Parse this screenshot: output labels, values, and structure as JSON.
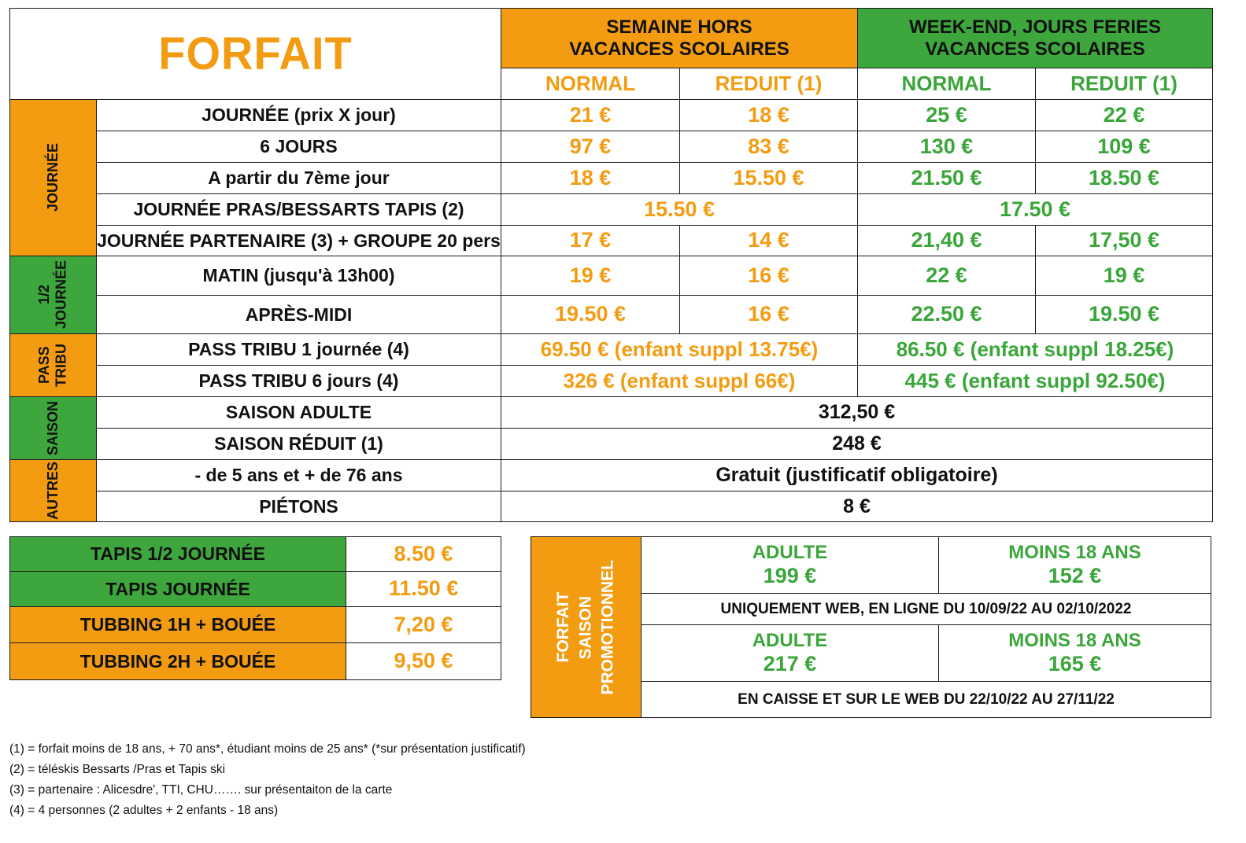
{
  "title": "FORFAIT",
  "group_headers": {
    "semaine": "SEMAINE     HORS\nVACANCES SCOLAIRES",
    "weekend": "WEEK-END, JOURS FERIES\nVACANCES SCOLAIRES"
  },
  "sub_headers": {
    "normal": "NORMAL",
    "reduit": "REDUIT (1)"
  },
  "sections": {
    "journee": "JOURNÉE",
    "demi": "1/2\nJOURNÉE",
    "pass": "PASS\nTRIBU",
    "saison": "SAISON",
    "autres": "AUTRES"
  },
  "rows": {
    "r1": {
      "label": "JOURNÉE (prix X jour)",
      "v1": "21 €",
      "v2": "18 €",
      "v3": "25 €",
      "v4": "22 €"
    },
    "r2": {
      "label": "6 JOURS",
      "v1": "97 €",
      "v2": "83 €",
      "v3": "130 €",
      "v4": "109 €"
    },
    "r3": {
      "label": "A partir du 7ème jour",
      "v1": "18 €",
      "v2": "15.50 €",
      "v3": "21.50 €",
      "v4": "18.50 €"
    },
    "r4": {
      "label": "JOURNÉE PRAS/BESSARTS TAPIS (2)",
      "v_semaine": "15.50 €",
      "v_weekend": "17.50 €"
    },
    "r5": {
      "label": "JOURNÉE PARTENAIRE (3) + GROUPE 20 pers",
      "v1": "17 €",
      "v2": "14 €",
      "v3": "21,40 €",
      "v4": "17,50 €"
    },
    "r6": {
      "label": "MATIN (jusqu'à 13h00)",
      "v1": "19 €",
      "v2": "16 €",
      "v3": "22 €",
      "v4": "19 €"
    },
    "r7": {
      "label": "APRÈS-MIDI",
      "v1": "19.50 €",
      "v2": "16 €",
      "v3": "22.50 €",
      "v4": "19.50 €"
    },
    "r8": {
      "label": "PASS TRIBU 1 journée (4)",
      "v_semaine": "69.50 € (enfant suppl 13.75€)",
      "v_weekend": "86.50 € (enfant suppl 18.25€)"
    },
    "r9": {
      "label": "PASS TRIBU 6 jours (4)",
      "v_semaine": "326 € (enfant suppl 66€)",
      "v_weekend": "445 € (enfant suppl 92.50€)"
    },
    "r10": {
      "label": "SAISON ADULTE",
      "value": "312,50 €"
    },
    "r11": {
      "label": "SAISON RÉDUIT (1)",
      "value": "248 €"
    },
    "r12": {
      "label": "- de 5 ans et + de 76 ans",
      "value": "Gratuit (justificatif obligatoire)"
    },
    "r13": {
      "label": "PIÉTONS",
      "value": "8 €"
    }
  },
  "extras": [
    {
      "label": "TAPIS 1/2 JOURNÉE",
      "price": "8.50 €"
    },
    {
      "label": "TAPIS JOURNÉE",
      "price": "11.50 €"
    },
    {
      "label": "TUBBING 1H + BOUÉE",
      "price": "7,20 €"
    },
    {
      "label": "TUBBING 2H + BOUÉE",
      "price": "9,50 €"
    }
  ],
  "promo": {
    "side_label": "FORFAIT\nSAISON\nPROMOTIONNEL",
    "block1": {
      "adult_label": "ADULTE",
      "adult_price": "199 €",
      "minor_label": "MOINS 18 ANS",
      "minor_price": "152 €",
      "note": "UNIQUEMENT WEB, EN LIGNE DU 10/09/22 AU 02/10/2022"
    },
    "block2": {
      "adult_label": "ADULTE",
      "adult_price": "217 €",
      "minor_label": "MOINS 18 ANS",
      "minor_price": "165 €",
      "note": "EN CAISSE ET SUR LE WEB DU 22/10/22 AU 27/11/22"
    }
  },
  "footnotes": [
    "(1) = forfait moins de 18 ans, + 70 ans*, étudiant moins de 25 ans* (*sur présentation justificatif)",
    "(2) = téléskis Bessarts /Pras et Tapis ski",
    "(3) = partenaire : Alicesdre', TTI, CHU…….  sur présentaiton de la carte",
    "(4) = 4 personnes (2 adultes + 2 enfants - 18 ans)"
  ],
  "colors": {
    "orange": "#f39c12",
    "green": "#3da73d"
  }
}
